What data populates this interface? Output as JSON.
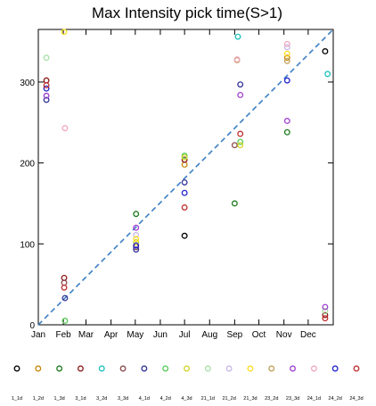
{
  "chart_data": {
    "type": "scatter",
    "title": "Max Intensity pick time(S>1)",
    "xlabel": "",
    "ylabel": "",
    "xlim": [
      0,
      365
    ],
    "ylim": [
      0,
      365
    ],
    "grid": false,
    "legend_position": "bottom",
    "x_ticks": [
      {
        "value": 0,
        "label": "Jan"
      },
      {
        "value": 31,
        "label": "Feb"
      },
      {
        "value": 59,
        "label": "Mar"
      },
      {
        "value": 90,
        "label": "Apr"
      },
      {
        "value": 120,
        "label": "May"
      },
      {
        "value": 151,
        "label": "Jun"
      },
      {
        "value": 181,
        "label": "Jul"
      },
      {
        "value": 212,
        "label": "Aug"
      },
      {
        "value": 243,
        "label": "Sep"
      },
      {
        "value": 273,
        "label": "Oct"
      },
      {
        "value": 304,
        "label": "Nov"
      },
      {
        "value": 334,
        "label": "Dec"
      }
    ],
    "y_ticks": [
      0,
      100,
      200,
      300
    ],
    "reference_line": {
      "style": "dashed",
      "color": "#3b7fc4",
      "from": [
        0,
        0
      ],
      "to": [
        365,
        365
      ]
    },
    "series": [
      {
        "name": "1_1d",
        "color": "#000000",
        "points": [
          [
            181,
            110
          ],
          [
            355,
            338
          ]
        ]
      },
      {
        "name": "1_2d",
        "color": "#c8860a",
        "points": [
          [
            181,
            198
          ],
          [
            308,
            330
          ]
        ]
      },
      {
        "name": "1_3d",
        "color": "#1e7a1e",
        "points": [
          [
            121,
            137
          ],
          [
            243,
            150
          ],
          [
            308,
            238
          ]
        ]
      },
      {
        "name": "3_1d",
        "color": "#8b1a1a",
        "points": [
          [
            10,
            302
          ],
          [
            32,
            58
          ],
          [
            181,
            204
          ],
          [
            355,
            12
          ]
        ]
      },
      {
        "name": "3_2d",
        "color": "#20c0c0",
        "points": [
          [
            247,
            356
          ],
          [
            358,
            310
          ]
        ]
      },
      {
        "name": "3_3d",
        "color": "#8b4a4a",
        "points": [
          [
            32,
            52
          ],
          [
            121,
            96
          ],
          [
            243,
            222
          ]
        ]
      },
      {
        "name": "4_1d",
        "color": "#333399",
        "points": [
          [
            10,
            278
          ],
          [
            33,
            33
          ],
          [
            121,
            93
          ],
          [
            181,
            176
          ],
          [
            250,
            297
          ]
        ]
      },
      {
        "name": "4_2d",
        "color": "#55cc55",
        "points": [
          [
            33,
            5
          ],
          [
            181,
            209
          ],
          [
            250,
            226
          ]
        ]
      },
      {
        "name": "4_3d",
        "color": "#d2d22a",
        "points": [
          [
            121,
            102
          ],
          [
            181,
            207
          ],
          [
            250,
            222
          ]
        ]
      },
      {
        "name": "21_1d",
        "color": "#a8e0a8",
        "points": [
          [
            10,
            330
          ],
          [
            355,
            17
          ]
        ]
      },
      {
        "name": "21_2d",
        "color": "#c8b8e8",
        "points": [
          [
            121,
            111
          ],
          [
            308,
            343
          ]
        ]
      },
      {
        "name": "21_3d",
        "color": "#ffdd22",
        "points": [
          [
            32,
            362
          ],
          [
            121,
            106
          ],
          [
            308,
            335
          ]
        ]
      },
      {
        "name": "23_2d",
        "color": "#c0a058",
        "points": [
          [
            246,
            327
          ],
          [
            308,
            326
          ]
        ]
      },
      {
        "name": "23_3d",
        "color": "#a040d0",
        "points": [
          [
            10,
            283
          ],
          [
            121,
            120
          ],
          [
            250,
            284
          ],
          [
            308,
            252
          ],
          [
            355,
            22
          ]
        ]
      },
      {
        "name": "24_1d",
        "color": "#f0a8c0",
        "points": [
          [
            33,
            243
          ],
          [
            246,
            328
          ],
          [
            308,
            347
          ]
        ]
      },
      {
        "name": "24_2d",
        "color": "#2222cc",
        "points": [
          [
            10,
            292
          ],
          [
            121,
            98
          ],
          [
            181,
            163
          ],
          [
            308,
            302
          ]
        ]
      },
      {
        "name": "24_3d",
        "color": "#c03030",
        "points": [
          [
            10,
            296
          ],
          [
            32,
            46
          ],
          [
            181,
            145
          ],
          [
            250,
            236
          ],
          [
            355,
            8
          ]
        ]
      }
    ]
  }
}
